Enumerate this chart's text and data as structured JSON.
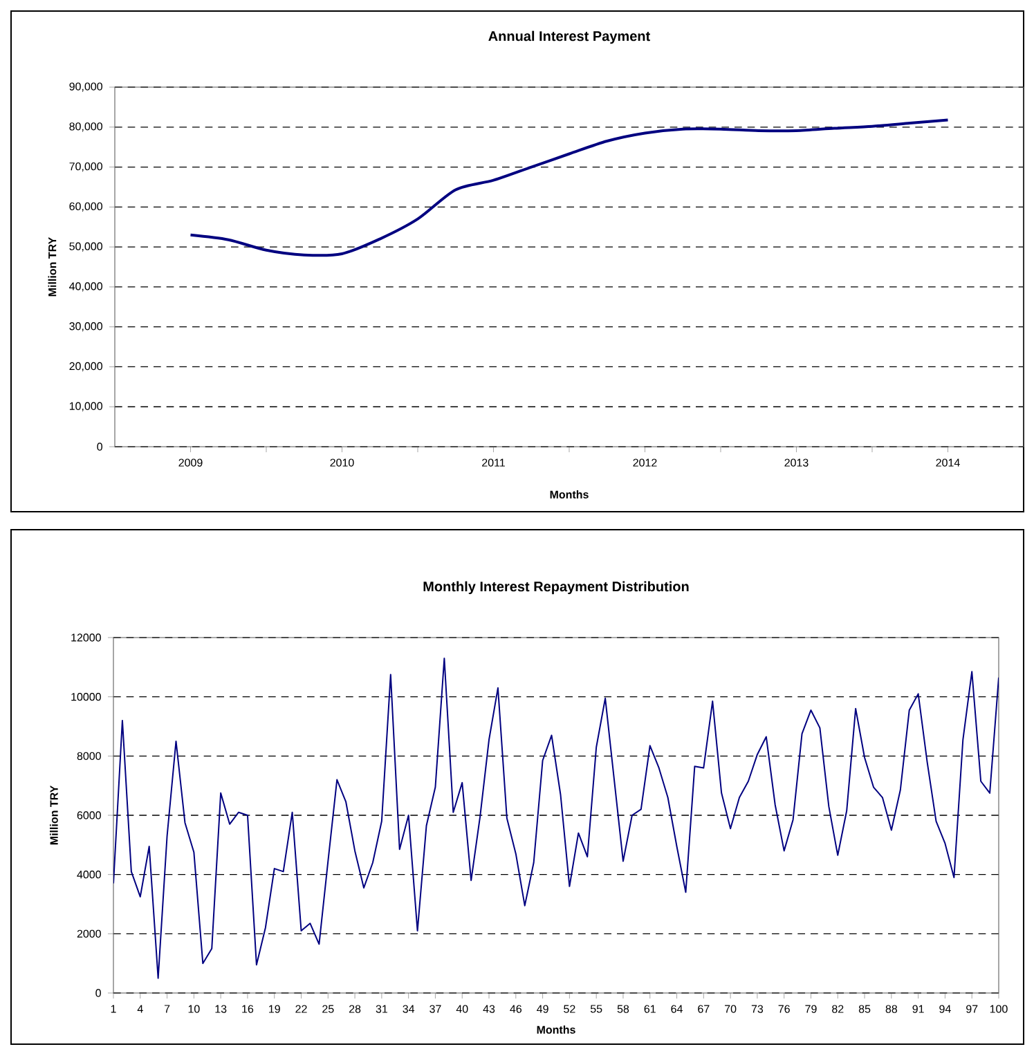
{
  "chart_data": [
    {
      "type": "line",
      "title": "Annual Interest Payment",
      "xlabel": "Months",
      "ylabel": "Million TRY",
      "grid": "y",
      "xlim": [
        2008.5,
        2014.5
      ],
      "ylim": [
        0,
        90000
      ],
      "xticks": [
        2009,
        {
          "value": 2009.5,
          "label": null
        },
        2010,
        {
          "value": 2010.5,
          "label": null
        },
        2011,
        {
          "value": 2011.5,
          "label": null
        },
        2012,
        {
          "value": 2012.5,
          "label": null
        },
        2013,
        {
          "value": 2013.5,
          "label": null
        },
        2014
      ],
      "yticks": [
        {
          "value": 0,
          "label": "0"
        },
        {
          "value": 10000,
          "label": "10,000"
        },
        {
          "value": 20000,
          "label": "20,000"
        },
        {
          "value": 30000,
          "label": "30,000"
        },
        {
          "value": 40000,
          "label": "40,000"
        },
        {
          "value": 50000,
          "label": "50,000"
        },
        {
          "value": 60000,
          "label": "60,000"
        },
        {
          "value": 70000,
          "label": "70,000"
        },
        {
          "value": 80000,
          "label": "80,000"
        },
        {
          "value": 90000,
          "label": "90,000"
        }
      ],
      "series": [
        {
          "color": "#000080",
          "x": [
            2009,
            2009.25,
            2009.5,
            2009.75,
            2010,
            2010.25,
            2010.5,
            2010.75,
            2011,
            2011.25,
            2011.5,
            2011.75,
            2012,
            2012.25,
            2012.5,
            2012.75,
            2013,
            2013.25,
            2013.5,
            2013.75,
            2014
          ],
          "values": [
            53000,
            51800,
            49200,
            48000,
            48300,
            52000,
            57000,
            64300,
            66700,
            70000,
            73300,
            76500,
            78500,
            79500,
            79500,
            79100,
            79100,
            79700,
            80200,
            81000,
            81800
          ]
        }
      ]
    },
    {
      "type": "line",
      "title": "Monthly Interest Repayment Distribution",
      "xlabel": "Months",
      "ylabel": "Million TRY",
      "grid": "y",
      "xlim": [
        1,
        100
      ],
      "ylim": [
        0,
        12000
      ],
      "xticks": [
        1,
        4,
        7,
        10,
        13,
        16,
        19,
        22,
        25,
        28,
        31,
        34,
        37,
        40,
        43,
        46,
        49,
        52,
        55,
        58,
        61,
        64,
        67,
        70,
        73,
        76,
        79,
        82,
        85,
        88,
        91,
        94,
        97,
        100
      ],
      "yticks": [
        0,
        2000,
        4000,
        6000,
        8000,
        10000,
        12000
      ],
      "series": [
        {
          "color": "#000080",
          "x": [
            1,
            2,
            3,
            4,
            5,
            6,
            7,
            8,
            9,
            10,
            11,
            12,
            13,
            14,
            15,
            16,
            17,
            18,
            19,
            20,
            21,
            22,
            23,
            24,
            25,
            26,
            27,
            28,
            29,
            30,
            31,
            32,
            33,
            34,
            35,
            36,
            37,
            38,
            39,
            40,
            41,
            42,
            43,
            44,
            45,
            46,
            47,
            48,
            49,
            50,
            51,
            52,
            53,
            54,
            55,
            56,
            57,
            58,
            59,
            60,
            61,
            62,
            63,
            64,
            65,
            66,
            67,
            68,
            69,
            70,
            71,
            72,
            73,
            74,
            75,
            76,
            77,
            78,
            79,
            80,
            81,
            82,
            83,
            84,
            85,
            86,
            87,
            88,
            89,
            90,
            91,
            92,
            93,
            94,
            95,
            96,
            97,
            98,
            99,
            100
          ],
          "values": [
            3700,
            9200,
            4100,
            3250,
            4950,
            500,
            5300,
            8500,
            5750,
            4750,
            1000,
            1500,
            6750,
            5700,
            6100,
            6000,
            950,
            2200,
            4200,
            4100,
            6100,
            2100,
            2350,
            1650,
            4450,
            7200,
            6450,
            4800,
            3550,
            4400,
            5800,
            10750,
            4850,
            6000,
            2100,
            5650,
            6950,
            11300,
            6100,
            7100,
            3800,
            5950,
            8550,
            10300,
            5900,
            4700,
            2950,
            4400,
            7850,
            8700,
            6700,
            3600,
            5400,
            4600,
            8300,
            9950,
            7200,
            4450,
            6000,
            6200,
            8350,
            7600,
            6600,
            4950,
            3400,
            7650,
            7600,
            9850,
            6750,
            5550,
            6600,
            7150,
            8050,
            8650,
            6350,
            4800,
            5850,
            8750,
            9550,
            8950,
            6300,
            4650,
            6150,
            9600,
            7950,
            6950,
            6600,
            5500,
            6850,
            9550,
            10100,
            7800,
            5800,
            5050,
            3900,
            8550,
            10850,
            7150,
            6750,
            10650
          ]
        }
      ]
    }
  ]
}
